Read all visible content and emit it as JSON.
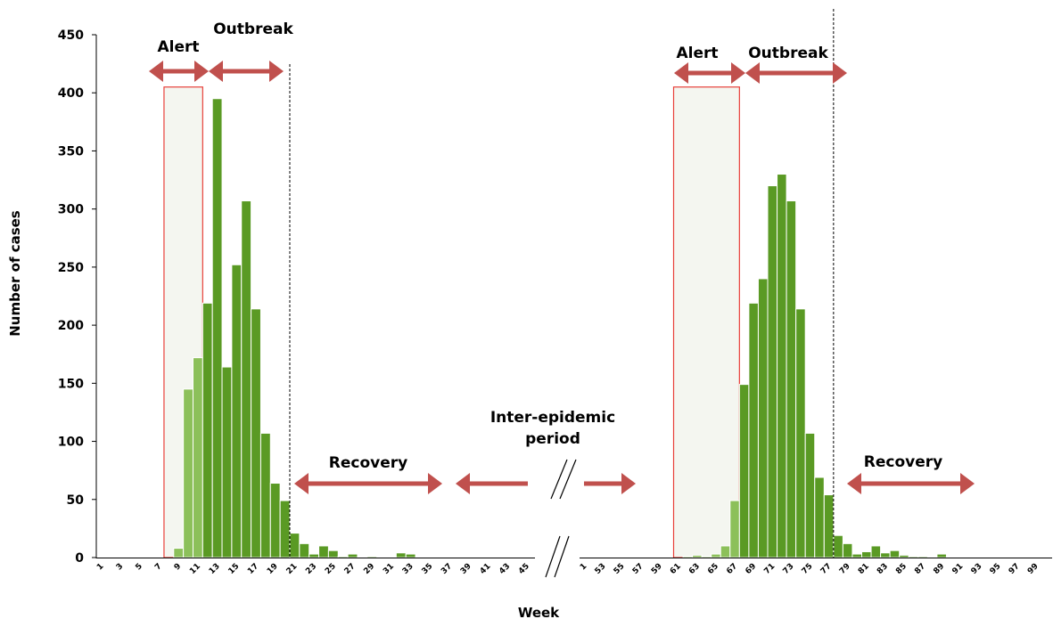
{
  "chart_data": {
    "type": "bar",
    "ylabel": "Number of cases",
    "xlabel": "Week",
    "ylim": [
      0,
      450
    ],
    "yticks": [
      "0",
      "50",
      "100",
      "150",
      "200",
      "250",
      "300",
      "350",
      "400",
      "450"
    ],
    "grid": false,
    "legend": "none",
    "colors": {
      "bar_dark": "#5a9a24",
      "bar_light": "#8cc05a",
      "bar_edge": "#ffffff",
      "arrow": "#c0504d",
      "box_border": "#e8403a",
      "box_fill": "#f4f6f0"
    },
    "panels": [
      {
        "weeks_range": [
          1,
          46
        ],
        "tick_labels": [
          "1",
          "3",
          "5",
          "7",
          "9",
          "11",
          "13",
          "15",
          "17",
          "19",
          "21",
          "23",
          "25",
          "27",
          "29",
          "31",
          "33",
          "35",
          "37",
          "39",
          "41",
          "43",
          "45"
        ],
        "values": [
          0,
          0,
          0,
          0,
          0,
          0,
          0,
          0,
          8,
          145,
          172,
          219,
          395,
          164,
          252,
          307,
          214,
          107,
          64,
          49,
          21,
          12,
          3,
          10,
          6,
          1,
          3,
          0,
          1,
          0,
          0,
          4,
          3,
          0,
          0,
          0,
          0,
          0,
          0,
          0,
          0,
          0,
          0,
          0,
          0,
          0
        ],
        "light_weeks": [
          9,
          10,
          11
        ],
        "alert_box_weeks": [
          8,
          11
        ],
        "outbreak_end_week": 21
      },
      {
        "weeks_range": [
          51,
          100
        ],
        "tick_labels": [
          "1",
          "53",
          "55",
          "57",
          "59",
          "61",
          "63",
          "65",
          "67",
          "69",
          "71",
          "73",
          "75",
          "77",
          "79",
          "81",
          "83",
          "85",
          "87",
          "89",
          "91",
          "93",
          "95",
          "97",
          "99"
        ],
        "values": [
          0,
          0,
          0,
          0,
          0,
          0,
          0,
          0,
          0,
          0,
          0,
          1,
          2,
          1,
          3,
          10,
          49,
          149,
          219,
          240,
          320,
          330,
          307,
          214,
          107,
          69,
          54,
          19,
          12,
          3,
          5,
          10,
          4,
          6,
          2,
          1,
          1,
          0,
          3,
          0,
          0,
          0,
          0,
          0,
          0,
          0,
          0,
          0,
          0,
          0
        ],
        "light_weeks": [
          62,
          63,
          64,
          65,
          66,
          67
        ],
        "alert_box_weeks": [
          61,
          67
        ],
        "outbreak_end_week": 78
      }
    ],
    "annotations": {
      "alert": "Alert",
      "outbreak": "Outbreak",
      "recovery": "Recovery",
      "inter_epidemic_line1": "Inter-epidemic",
      "inter_epidemic_line2": "period",
      "break_symbol": "//"
    }
  }
}
